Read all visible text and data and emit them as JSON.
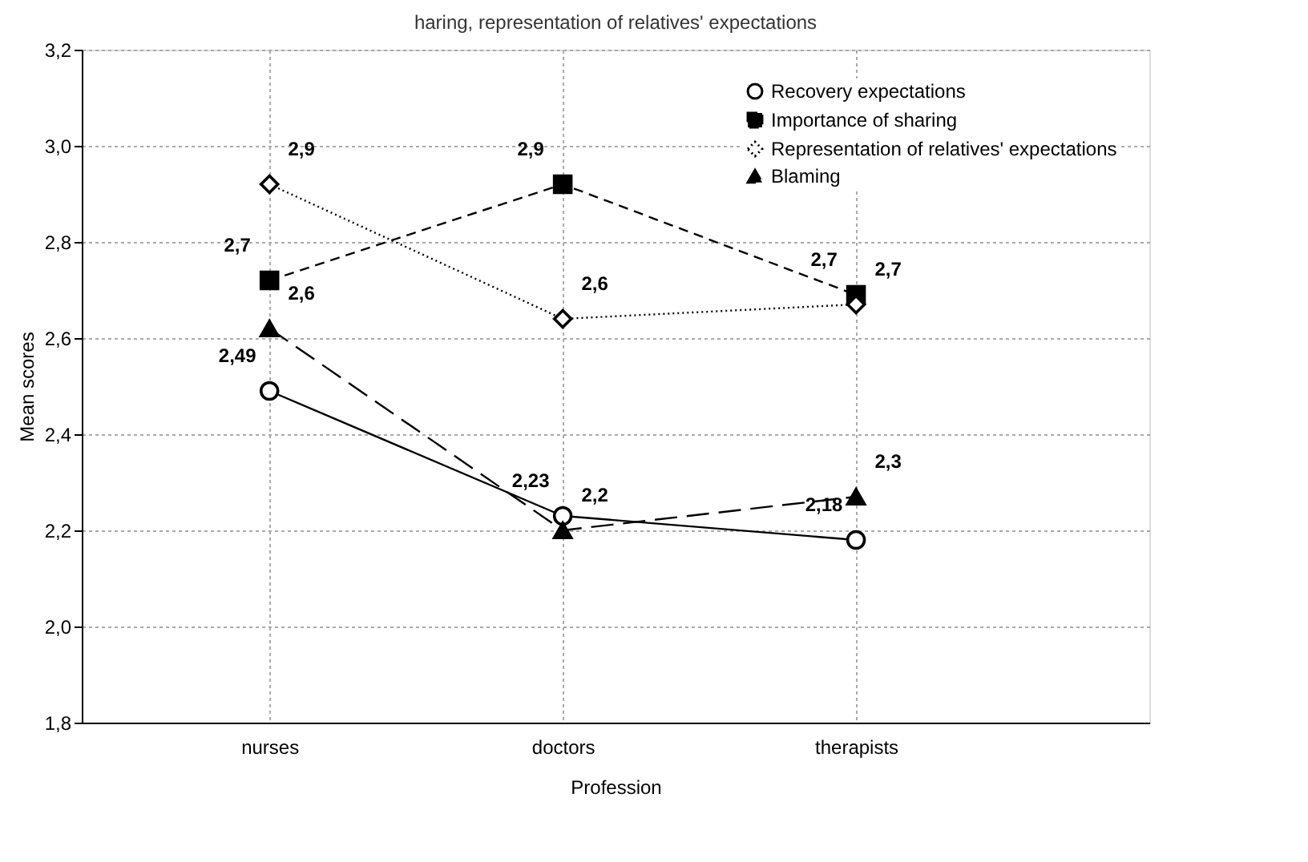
{
  "chart_data": {
    "type": "line",
    "title": "haring, representation of relatives' expectations",
    "xlabel": "Profession",
    "ylabel": "Mean scores",
    "categories": [
      "nurses",
      "doctors",
      "therapists"
    ],
    "ylim": [
      1.8,
      3.2
    ],
    "yticks": [
      {
        "value": 1.8,
        "label": "1,8"
      },
      {
        "value": 2.0,
        "label": "2,0"
      },
      {
        "value": 2.2,
        "label": "2,2"
      },
      {
        "value": 2.4,
        "label": "2,4"
      },
      {
        "value": 2.6,
        "label": "2,6"
      },
      {
        "value": 2.8,
        "label": "2,8"
      },
      {
        "value": 3.0,
        "label": "3,0"
      },
      {
        "value": 3.2,
        "label": "3,2"
      }
    ],
    "grid": true,
    "legend": "top right",
    "series": [
      {
        "name": "Recovery expectations",
        "color": "#000000",
        "marker": "circle",
        "line_style": "solid",
        "values": [
          2.49,
          2.23,
          2.18
        ],
        "value_labels": [
          "2,49",
          "2,23",
          "2,18"
        ]
      },
      {
        "name": "Importance of sharing",
        "color": "#000000",
        "marker": "square",
        "line_style": "dashed",
        "values": [
          2.72,
          2.92,
          2.69
        ],
        "value_labels": [
          "2,7",
          "2,9",
          "2,7"
        ]
      },
      {
        "name": "Representation of relatives' expectations",
        "color": "#000000",
        "marker": "diamond",
        "line_style": "dotted",
        "values": [
          2.92,
          2.64,
          2.67
        ],
        "value_labels": [
          "2,9",
          "2,6",
          "2,7"
        ]
      },
      {
        "name": "Blaming",
        "color": "#000000",
        "marker": "triangle",
        "line_style": "dashed",
        "values": [
          2.62,
          2.2,
          2.27
        ],
        "value_labels": [
          "2,6",
          "2,2",
          "2,3"
        ]
      }
    ]
  }
}
